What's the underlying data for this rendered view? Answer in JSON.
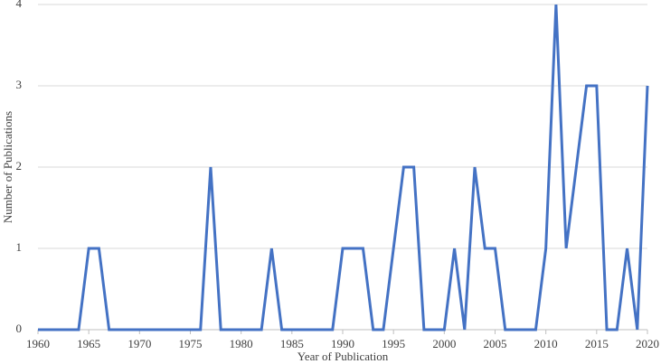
{
  "chart_data": {
    "type": "line",
    "x_label": "Year of Publication",
    "y_label": "Number of Publications",
    "x": [
      1960,
      1961,
      1962,
      1963,
      1964,
      1965,
      1966,
      1967,
      1968,
      1969,
      1970,
      1971,
      1972,
      1973,
      1974,
      1975,
      1976,
      1977,
      1978,
      1979,
      1980,
      1981,
      1982,
      1983,
      1984,
      1985,
      1986,
      1987,
      1988,
      1989,
      1990,
      1991,
      1992,
      1993,
      1994,
      1995,
      1996,
      1997,
      1998,
      1999,
      2000,
      2001,
      2002,
      2003,
      2004,
      2005,
      2006,
      2007,
      2008,
      2009,
      2010,
      2011,
      2012,
      2013,
      2014,
      2015,
      2016,
      2017,
      2018,
      2019,
      2020
    ],
    "series": [
      {
        "color": "#4472c4",
        "values": [
          0,
          0,
          0,
          0,
          0,
          1,
          1,
          0,
          0,
          0,
          0,
          0,
          0,
          0,
          0,
          0,
          0,
          2,
          0,
          0,
          0,
          0,
          0,
          1,
          0,
          0,
          0,
          0,
          0,
          0,
          1,
          1,
          1,
          0,
          0,
          1,
          2,
          2,
          0,
          0,
          0,
          1,
          0,
          2,
          1,
          1,
          0,
          0,
          0,
          0,
          1,
          4,
          1,
          2,
          3,
          3,
          0,
          0,
          1,
          0,
          3
        ]
      }
    ],
    "xlim": [
      1960,
      2020
    ],
    "xticks": [
      1960,
      1965,
      1970,
      1975,
      1980,
      1985,
      1990,
      1995,
      2000,
      2005,
      2010,
      2015,
      2020
    ],
    "ylim": [
      0,
      4
    ],
    "yticks": [
      0,
      1,
      2,
      3,
      4
    ],
    "grid": true
  }
}
